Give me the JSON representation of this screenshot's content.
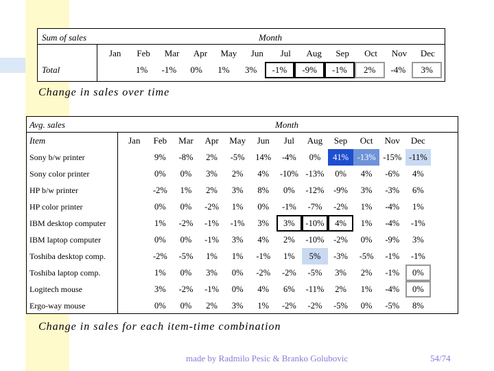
{
  "top_table": {
    "title": "Sum of sales",
    "month_label": "Month",
    "row_label": "Total",
    "months": [
      "Jan",
      "Feb",
      "Mar",
      "Apr",
      "May",
      "Jun",
      "Jul",
      "Aug",
      "Sep",
      "Oct",
      "Nov",
      "Dec"
    ],
    "values": [
      "",
      "1%",
      "-1%",
      "0%",
      "1%",
      "3%",
      "-1%",
      "-9%",
      "-1%",
      "2%",
      "-4%",
      "3%"
    ]
  },
  "caption_top": "Change in sales over time",
  "main_table": {
    "title": "Avg. sales",
    "month_label": "Month",
    "item_label": "Item",
    "months": [
      "Jan",
      "Feb",
      "Mar",
      "Apr",
      "May",
      "Jun",
      "Jul",
      "Aug",
      "Sep",
      "Oct",
      "Nov",
      "Dec"
    ],
    "rows": [
      {
        "name": "Sony b/w printer",
        "values": [
          "",
          "9%",
          "-8%",
          "2%",
          "-5%",
          "14%",
          "-4%",
          "0%",
          "41%",
          "-13%",
          "-15%",
          "-11%"
        ]
      },
      {
        "name": "Sony color printer",
        "values": [
          "",
          "0%",
          "0%",
          "3%",
          "2%",
          "4%",
          "-10%",
          "-13%",
          "0%",
          "4%",
          "-6%",
          "4%"
        ]
      },
      {
        "name": "HP b/w printer",
        "values": [
          "",
          "-2%",
          "1%",
          "2%",
          "3%",
          "8%",
          "0%",
          "-12%",
          "-9%",
          "3%",
          "-3%",
          "6%"
        ]
      },
      {
        "name": "HP color printer",
        "values": [
          "",
          "0%",
          "0%",
          "-2%",
          "1%",
          "0%",
          "-1%",
          "-7%",
          "-2%",
          "1%",
          "-4%",
          "1%"
        ]
      },
      {
        "name": "IBM desktop computer",
        "values": [
          "",
          "1%",
          "-2%",
          "-1%",
          "-1%",
          "3%",
          "3%",
          "-10%",
          "4%",
          "1%",
          "-4%",
          "-1%"
        ]
      },
      {
        "name": "IBM laptop computer",
        "values": [
          "",
          "0%",
          "0%",
          "-1%",
          "3%",
          "4%",
          "2%",
          "-10%",
          "-2%",
          "0%",
          "-9%",
          "3%"
        ]
      },
      {
        "name": "Toshiba desktop comp.",
        "values": [
          "",
          "-2%",
          "-5%",
          "1%",
          "1%",
          "-1%",
          "1%",
          "5%",
          "-3%",
          "-5%",
          "-1%",
          "-1%"
        ]
      },
      {
        "name": "Toshiba laptop comp.",
        "values": [
          "",
          "1%",
          "0%",
          "3%",
          "0%",
          "-2%",
          "-2%",
          "-5%",
          "3%",
          "2%",
          "-1%",
          "0%"
        ]
      },
      {
        "name": "Logitech mouse",
        "values": [
          "",
          "3%",
          "-2%",
          "-1%",
          "0%",
          "4%",
          "6%",
          "-11%",
          "2%",
          "1%",
          "-4%",
          "0%"
        ]
      },
      {
        "name": "Ergo-way mouse",
        "values": [
          "",
          "0%",
          "0%",
          "2%",
          "3%",
          "1%",
          "-2%",
          "-2%",
          "-5%",
          "0%",
          "-5%",
          "8%"
        ]
      }
    ]
  },
  "caption_bottom": "Change in sales for each item-time combination",
  "footer_text": "made by Radmilo Pesic & Branko Golubovic",
  "page_number": "54/74",
  "colors": {
    "highlight_dark": "#1f4fcf",
    "highlight_mid": "#6f93d8",
    "highlight_light": "#c9d9f2",
    "footer_text": "#8a7ad6",
    "background_accent": "#fffacc"
  }
}
